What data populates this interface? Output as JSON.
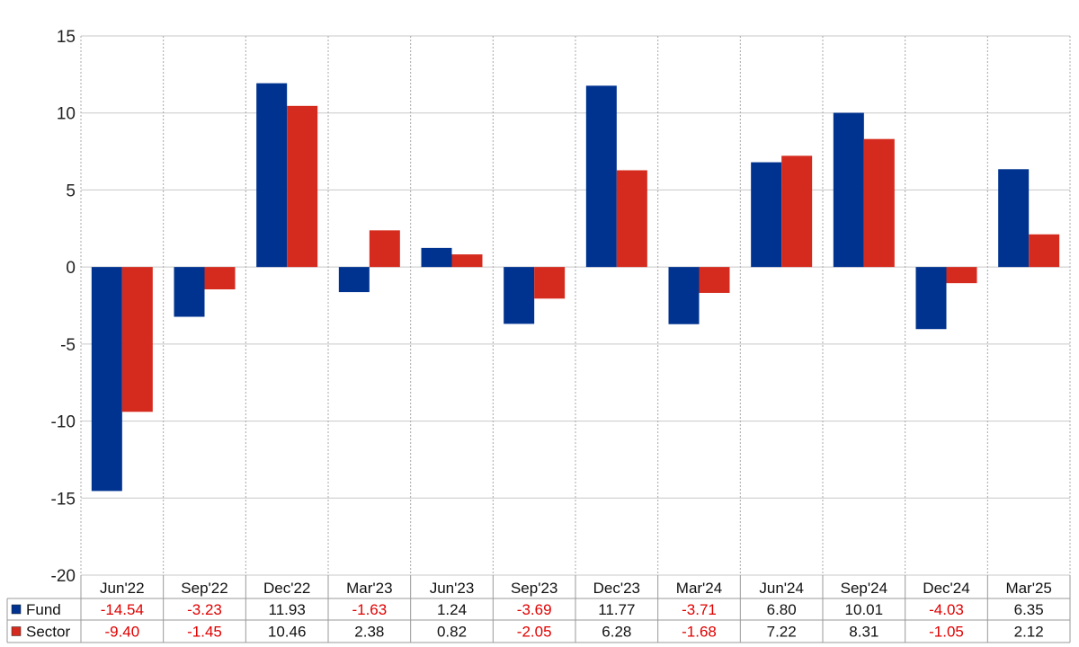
{
  "chart_data": {
    "type": "bar",
    "title": "",
    "xlabel": "",
    "ylabel": "",
    "ylim": [
      -20,
      15
    ],
    "yticks": [
      15,
      10,
      5,
      0,
      -5,
      -10,
      -15,
      -20
    ],
    "grid": true,
    "legend_position": "table-bottom",
    "categories": [
      "Jun'22",
      "Sep'22",
      "Dec'22",
      "Mar'23",
      "Jun'23",
      "Sep'23",
      "Dec'23",
      "Mar'24",
      "Jun'24",
      "Sep'24",
      "Dec'24",
      "Mar'25"
    ],
    "series": [
      {
        "name": "Fund",
        "color": "#00338f",
        "values": [
          -14.54,
          -3.23,
          11.93,
          -1.63,
          1.24,
          -3.69,
          11.77,
          -3.71,
          6.8,
          10.01,
          -4.03,
          6.35
        ],
        "labels": [
          "-14.54",
          "-3.23",
          "11.93",
          "-1.63",
          "1.24",
          "-3.69",
          "11.77",
          "-3.71",
          "6.80",
          "10.01",
          "-4.03",
          "6.35"
        ]
      },
      {
        "name": "Sector",
        "color": "#d52b1e",
        "values": [
          -9.4,
          -1.45,
          10.46,
          2.38,
          0.82,
          -2.05,
          6.28,
          -1.68,
          7.22,
          8.31,
          -1.05,
          2.12
        ],
        "labels": [
          "-9.40",
          "-1.45",
          "10.46",
          "2.38",
          "0.82",
          "-2.05",
          "6.28",
          "-1.68",
          "7.22",
          "8.31",
          "-1.05",
          "2.12"
        ]
      }
    ],
    "negative_text_color": "#e00000",
    "positive_text_color": "#111111"
  }
}
